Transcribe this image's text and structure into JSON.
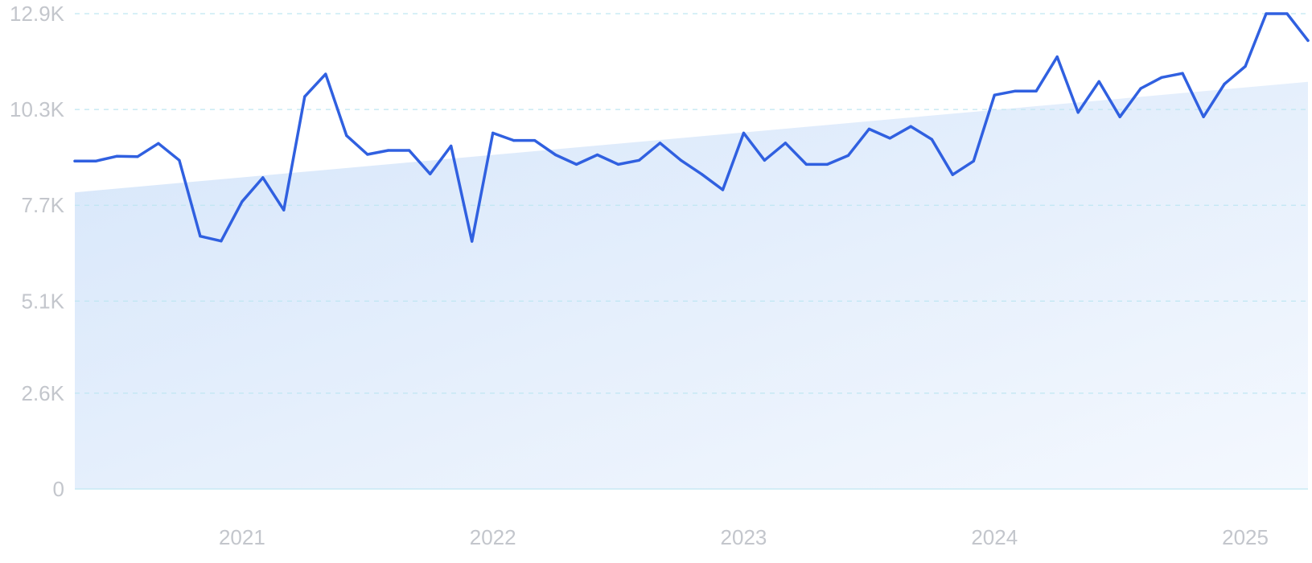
{
  "chart_data": {
    "type": "area",
    "title": "",
    "xlabel": "",
    "ylabel": "",
    "ylim": [
      0,
      12900
    ],
    "yticks": [
      {
        "value": 0,
        "label": "0"
      },
      {
        "value": 2600,
        "label": "2.6K"
      },
      {
        "value": 5100,
        "label": "5.1K"
      },
      {
        "value": 7700,
        "label": "7.7K"
      },
      {
        "value": 10300,
        "label": "10.3K"
      },
      {
        "value": 12900,
        "label": "12.9K"
      }
    ],
    "xlim": [
      "2020-05",
      "2025-04"
    ],
    "xticks": [
      {
        "value": "2021-01",
        "label": "2021"
      },
      {
        "value": "2022-01",
        "label": "2022"
      },
      {
        "value": "2023-01",
        "label": "2023"
      },
      {
        "value": "2024-01",
        "label": "2024"
      },
      {
        "value": "2025-01",
        "label": "2025"
      }
    ],
    "grid": true,
    "colors": {
      "line": "#3060e0",
      "trend_fill_start": "#d6e6fa",
      "trend_fill_end": "#f4f8fe",
      "grid": "#bfe6f2",
      "tick_text": "#c3c6cc"
    },
    "trend": {
      "x": [
        "2020-05",
        "2025-04"
      ],
      "values": [
        8050,
        11050
      ]
    },
    "series": [
      {
        "x": [
          "2020-05",
          "2020-06",
          "2020-07",
          "2020-08",
          "2020-09",
          "2020-10",
          "2020-11",
          "2020-12",
          "2021-01",
          "2021-02",
          "2021-03",
          "2021-04",
          "2021-05",
          "2021-06",
          "2021-07",
          "2021-08",
          "2021-09",
          "2021-10",
          "2021-11",
          "2021-12",
          "2022-01",
          "2022-02",
          "2022-03",
          "2022-04",
          "2022-05",
          "2022-06",
          "2022-07",
          "2022-08",
          "2022-09",
          "2022-10",
          "2022-11",
          "2022-12",
          "2023-01",
          "2023-02",
          "2023-03",
          "2023-04",
          "2023-05",
          "2023-06",
          "2023-07",
          "2023-08",
          "2023-09",
          "2023-10",
          "2023-11",
          "2023-12",
          "2024-01",
          "2024-02",
          "2024-03",
          "2024-04",
          "2024-05",
          "2024-06",
          "2024-07",
          "2024-08",
          "2024-09",
          "2024-10",
          "2024-11",
          "2024-12",
          "2025-01",
          "2025-02",
          "2025-03",
          "2025-04"
        ],
        "values": [
          8900,
          8900,
          9030,
          9020,
          9380,
          8920,
          6860,
          6730,
          7800,
          8450,
          7570,
          10650,
          11260,
          9590,
          9080,
          9190,
          9190,
          8550,
          9310,
          6720,
          9660,
          9460,
          9460,
          9070,
          8810,
          9070,
          8810,
          8920,
          9390,
          8920,
          8540,
          8120,
          9660,
          8920,
          9390,
          8810,
          8810,
          9050,
          9770,
          9520,
          9840,
          9490,
          8530,
          8900,
          10690,
          10800,
          10800,
          11730,
          10220,
          11060,
          10100,
          10870,
          11170,
          11280,
          10100,
          10990,
          11470,
          12900,
          12900,
          12170
        ]
      }
    ]
  }
}
